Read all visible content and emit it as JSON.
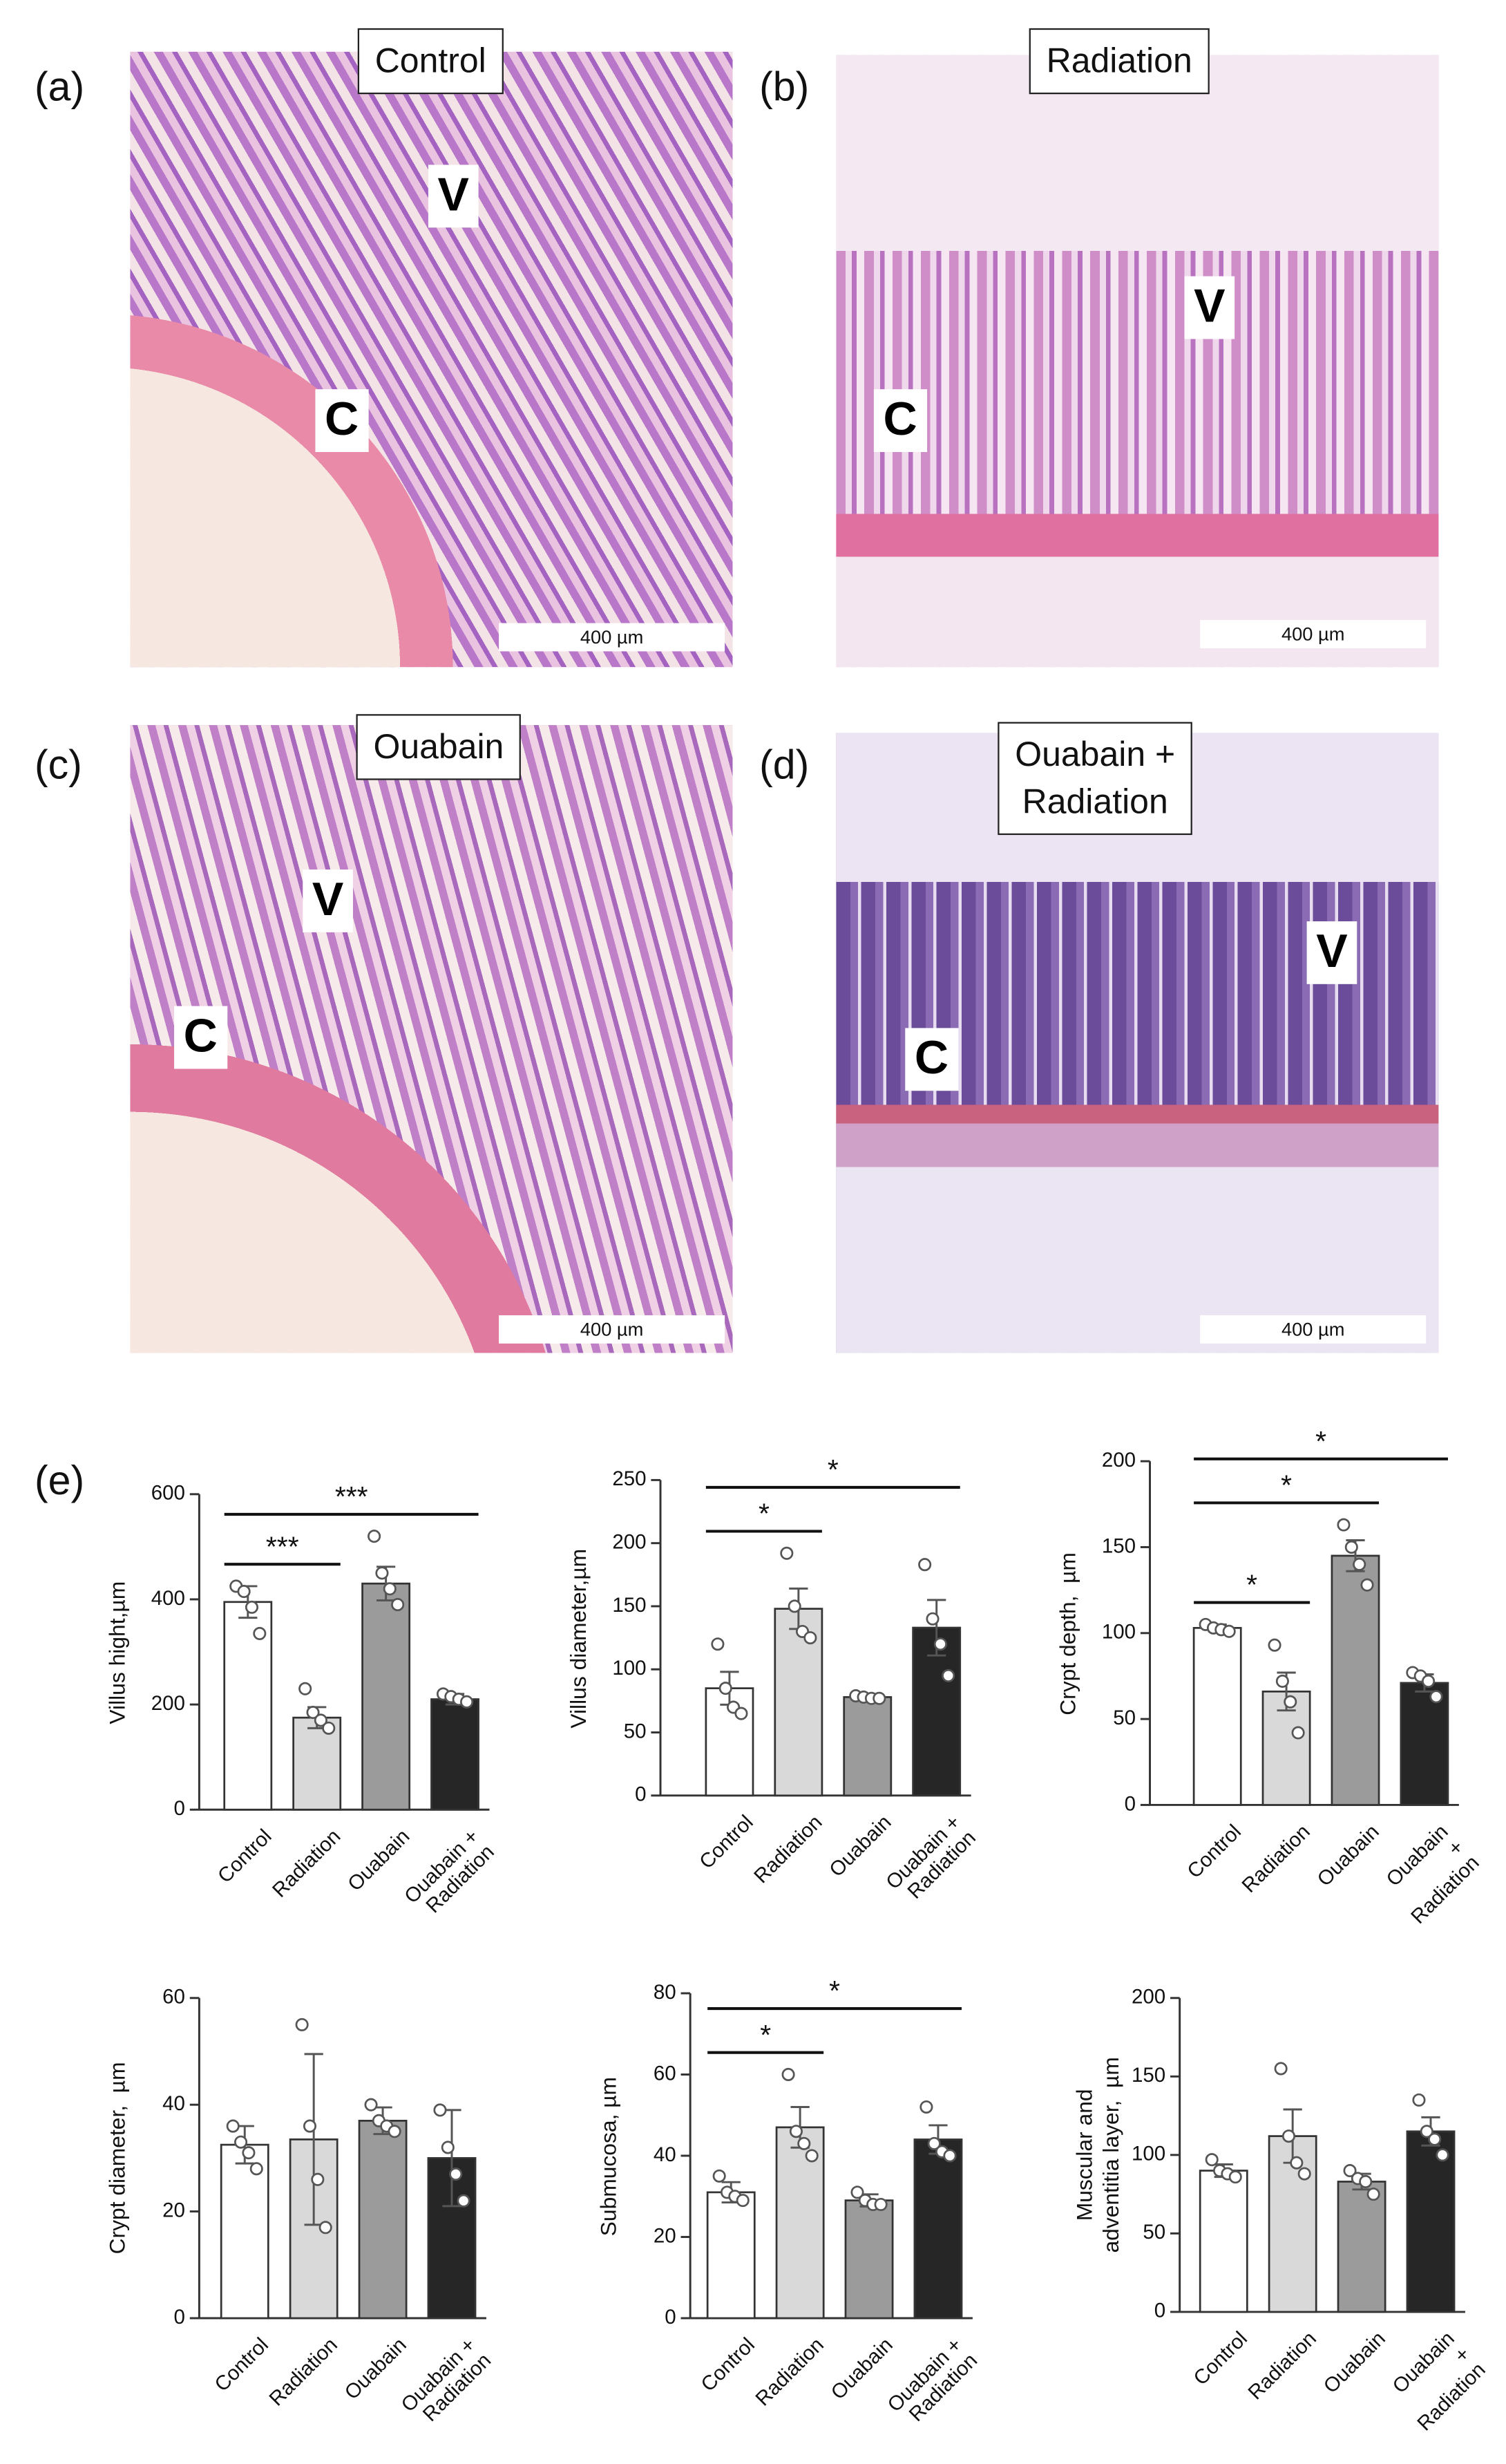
{
  "panels": [
    {
      "label": "(a)",
      "title": "Control",
      "markers": [
        "V",
        "C"
      ],
      "scale_bar": "400 µm"
    },
    {
      "label": "(b)",
      "title": "Radiation",
      "markers": [
        "V",
        "C"
      ],
      "scale_bar": "400 µm"
    },
    {
      "label": "(c)",
      "title": "Ouabain",
      "markers": [
        "V",
        "C"
      ],
      "scale_bar": "400 µm"
    },
    {
      "label": "(d)",
      "title": "Ouabain +\nRadiation",
      "markers": [
        "V",
        "C"
      ],
      "scale_bar": "400 µm"
    }
  ],
  "charts_label": "(e)",
  "chart_data": [
    {
      "type": "bar",
      "ylabel": "Villus hight,µm",
      "categories": [
        "Control",
        "Radiation",
        "Ouabain",
        "Ouabain +\nRadiation"
      ],
      "colors": [
        "#ffffff",
        "#d9d9d9",
        "#9b9b9b",
        "#262626"
      ],
      "values": [
        395,
        175,
        430,
        210
      ],
      "errors": [
        30,
        20,
        32,
        10
      ],
      "points": [
        [
          425,
          415,
          385,
          335
        ],
        [
          230,
          185,
          170,
          155
        ],
        [
          520,
          450,
          420,
          390
        ],
        [
          220,
          215,
          210,
          205
        ]
      ],
      "ylim": [
        0,
        600
      ],
      "yticks": [
        0,
        200,
        400,
        600
      ],
      "annotations": [
        {
          "text": "***",
          "from": "Control",
          "to": "Radiation"
        },
        {
          "text": "***",
          "from": "Control",
          "to": "Ouabain +\nRadiation"
        }
      ]
    },
    {
      "type": "bar",
      "ylabel": "Villus diameter,µm",
      "categories": [
        "Control",
        "Radiation",
        "Ouabain",
        "Ouabain +\nRadiation"
      ],
      "colors": [
        "#ffffff",
        "#d9d9d9",
        "#9b9b9b",
        "#262626"
      ],
      "values": [
        85,
        148,
        78,
        133
      ],
      "errors": [
        13,
        16,
        2,
        22
      ],
      "points": [
        [
          120,
          85,
          70,
          65
        ],
        [
          192,
          150,
          130,
          125
        ],
        [
          79,
          78,
          77,
          77
        ],
        [
          183,
          140,
          120,
          95
        ]
      ],
      "ylim": [
        0,
        250
      ],
      "yticks": [
        0,
        50,
        100,
        150,
        200,
        250
      ],
      "annotations": [
        {
          "text": "*",
          "from": "Control",
          "to": "Radiation"
        },
        {
          "text": "*",
          "from": "Control",
          "to": "Ouabain +\nRadiation"
        }
      ]
    },
    {
      "type": "bar",
      "ylabel": "Crypt depth,  µm",
      "categories": [
        "Control",
        "Radiation",
        "Ouabain",
        "Ouabain +\nRadiation"
      ],
      "colors": [
        "#ffffff",
        "#d9d9d9",
        "#9b9b9b",
        "#262626"
      ],
      "values": [
        103,
        66,
        145,
        71
      ],
      "errors": [
        2,
        11,
        9,
        5
      ],
      "points": [
        [
          105,
          103,
          102,
          101
        ],
        [
          93,
          72,
          60,
          42
        ],
        [
          163,
          150,
          140,
          128
        ],
        [
          77,
          75,
          72,
          63
        ]
      ],
      "ylim": [
        0,
        200
      ],
      "yticks": [
        0,
        50,
        100,
        150,
        200
      ],
      "annotations": [
        {
          "text": "*",
          "from": "Control",
          "to": "Radiation"
        },
        {
          "text": "*",
          "from": "Control",
          "to": "Ouabain"
        },
        {
          "text": "*",
          "from": "Control",
          "to": "Ouabain +\nRadiation"
        }
      ]
    },
    {
      "type": "bar",
      "ylabel": "Crypt diameter,  µm",
      "categories": [
        "Control",
        "Radiation",
        "Ouabain",
        "Ouabain +\nRadiation"
      ],
      "colors": [
        "#ffffff",
        "#d9d9d9",
        "#9b9b9b",
        "#262626"
      ],
      "values": [
        32.5,
        33.5,
        37,
        30
      ],
      "errors": [
        3.5,
        16,
        2.5,
        9
      ],
      "points": [
        [
          36,
          33,
          31,
          28
        ],
        [
          55,
          36,
          26,
          17
        ],
        [
          40,
          37,
          36,
          35
        ],
        [
          39,
          32,
          27,
          22
        ]
      ],
      "ylim": [
        0,
        60
      ],
      "yticks": [
        0,
        20,
        40,
        60
      ],
      "annotations": []
    },
    {
      "type": "bar",
      "ylabel": "Submucosa, µm",
      "categories": [
        "Control",
        "Radiation",
        "Ouabain",
        "Ouabain +\nRadiation"
      ],
      "colors": [
        "#ffffff",
        "#d9d9d9",
        "#9b9b9b",
        "#262626"
      ],
      "values": [
        31,
        47,
        29,
        44
      ],
      "errors": [
        2.5,
        5,
        1.5,
        3.5
      ],
      "points": [
        [
          35,
          31,
          30,
          29
        ],
        [
          60,
          46,
          43,
          40
        ],
        [
          31,
          29,
          28,
          28
        ],
        [
          52,
          43,
          41,
          40
        ]
      ],
      "ylim": [
        0,
        80
      ],
      "yticks": [
        0,
        20,
        40,
        60,
        80
      ],
      "annotations": [
        {
          "text": "*",
          "from": "Control",
          "to": "Radiation"
        },
        {
          "text": "*",
          "from": "Control",
          "to": "Ouabain +\nRadiation"
        }
      ]
    },
    {
      "type": "bar",
      "ylabel": "Muscular and\nadventitia layer,  µm",
      "categories": [
        "Control",
        "Radiation",
        "Ouabain",
        "Ouabain +\nRadiation"
      ],
      "colors": [
        "#ffffff",
        "#d9d9d9",
        "#9b9b9b",
        "#262626"
      ],
      "values": [
        90,
        112,
        83,
        115
      ],
      "errors": [
        4,
        17,
        5,
        9
      ],
      "points": [
        [
          97,
          90,
          88,
          86
        ],
        [
          155,
          112,
          95,
          88
        ],
        [
          90,
          85,
          83,
          75
        ],
        [
          135,
          115,
          110,
          100
        ]
      ],
      "ylim": [
        0,
        200
      ],
      "yticks": [
        0,
        50,
        100,
        150,
        200
      ],
      "annotations": []
    }
  ]
}
